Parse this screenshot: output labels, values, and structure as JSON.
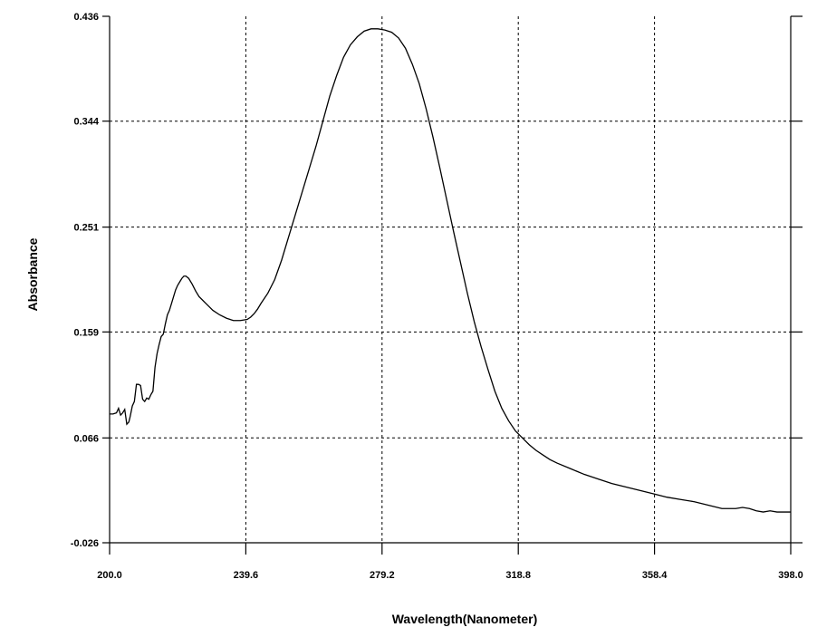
{
  "chart_data": {
    "type": "line",
    "title": "",
    "xlabel": "Wavelength(Nanometer)",
    "ylabel": "Absorbance",
    "xlim": [
      200.0,
      398.0
    ],
    "ylim": [
      -0.026,
      0.436
    ],
    "x_ticks": [
      "200.0",
      "239.6",
      "279.2",
      "318.8",
      "358.4",
      "398.0"
    ],
    "y_ticks": [
      "-0.026",
      "0.066",
      "0.159",
      "0.251",
      "0.344",
      "0.436"
    ],
    "grid": "dashed",
    "series": [
      {
        "x": [
          200.0,
          201.0,
          202.0,
          202.6,
          203.2,
          203.8,
          204.4,
          205.0,
          205.6,
          206.0,
          206.6,
          207.2,
          207.8,
          208.4,
          209.0,
          209.6,
          210.2,
          210.8,
          211.4,
          212.0,
          212.6,
          213.2,
          213.8,
          214.4,
          215.0,
          215.6,
          216.2,
          216.8,
          217.4,
          218.0,
          218.6,
          219.2,
          219.8,
          220.4,
          221.0,
          221.6,
          222.2,
          223.0,
          224.0,
          225.0,
          226.0,
          227.0,
          228.0,
          229.0,
          230.0,
          232.0,
          234.0,
          236.0,
          238.0,
          240.0,
          241.0,
          242.0,
          243.0,
          244.0,
          246.0,
          248.0,
          250.0,
          252.0,
          254.0,
          256.0,
          258.0,
          260.0,
          262.0,
          264.0,
          266.0,
          268.0,
          270.0,
          272.0,
          274.0,
          276.0,
          278.0,
          280.0,
          282.0,
          284.0,
          286.0,
          288.0,
          290.0,
          292.0,
          294.0,
          296.0,
          298.0,
          300.0,
          302.0,
          304.0,
          306.0,
          308.0,
          310.0,
          312.0,
          314.0,
          316.0,
          318.0,
          320.0,
          322.0,
          324.0,
          326.0,
          328.0,
          330.0,
          334.0,
          338.0,
          342.0,
          346.0,
          350.0,
          354.0,
          358.0,
          362.0,
          366.0,
          370.0,
          374.0,
          378.0,
          380.0,
          382.0,
          384.0,
          386.0,
          388.0,
          390.0,
          392.0,
          394.0,
          396.0,
          398.0
        ],
        "y": [
          0.087,
          0.087,
          0.088,
          0.092,
          0.086,
          0.088,
          0.091,
          0.078,
          0.08,
          0.085,
          0.094,
          0.098,
          0.113,
          0.113,
          0.112,
          0.1,
          0.098,
          0.101,
          0.1,
          0.104,
          0.107,
          0.128,
          0.14,
          0.148,
          0.155,
          0.157,
          0.166,
          0.174,
          0.178,
          0.184,
          0.19,
          0.196,
          0.2,
          0.203,
          0.206,
          0.208,
          0.208,
          0.206,
          0.201,
          0.195,
          0.19,
          0.187,
          0.184,
          0.181,
          0.178,
          0.174,
          0.171,
          0.169,
          0.169,
          0.17,
          0.172,
          0.175,
          0.179,
          0.184,
          0.193,
          0.205,
          0.222,
          0.242,
          0.262,
          0.282,
          0.302,
          0.322,
          0.344,
          0.366,
          0.384,
          0.4,
          0.411,
          0.418,
          0.423,
          0.425,
          0.425,
          0.424,
          0.422,
          0.417,
          0.408,
          0.394,
          0.377,
          0.355,
          0.33,
          0.303,
          0.275,
          0.247,
          0.22,
          0.193,
          0.168,
          0.146,
          0.126,
          0.107,
          0.092,
          0.081,
          0.072,
          0.066,
          0.06,
          0.055,
          0.051,
          0.047,
          0.044,
          0.039,
          0.034,
          0.03,
          0.026,
          0.023,
          0.02,
          0.017,
          0.014,
          0.012,
          0.01,
          0.007,
          0.004,
          0.004,
          0.004,
          0.005,
          0.004,
          0.002,
          0.001,
          0.002,
          0.001,
          0.001,
          0.001
        ]
      }
    ]
  }
}
